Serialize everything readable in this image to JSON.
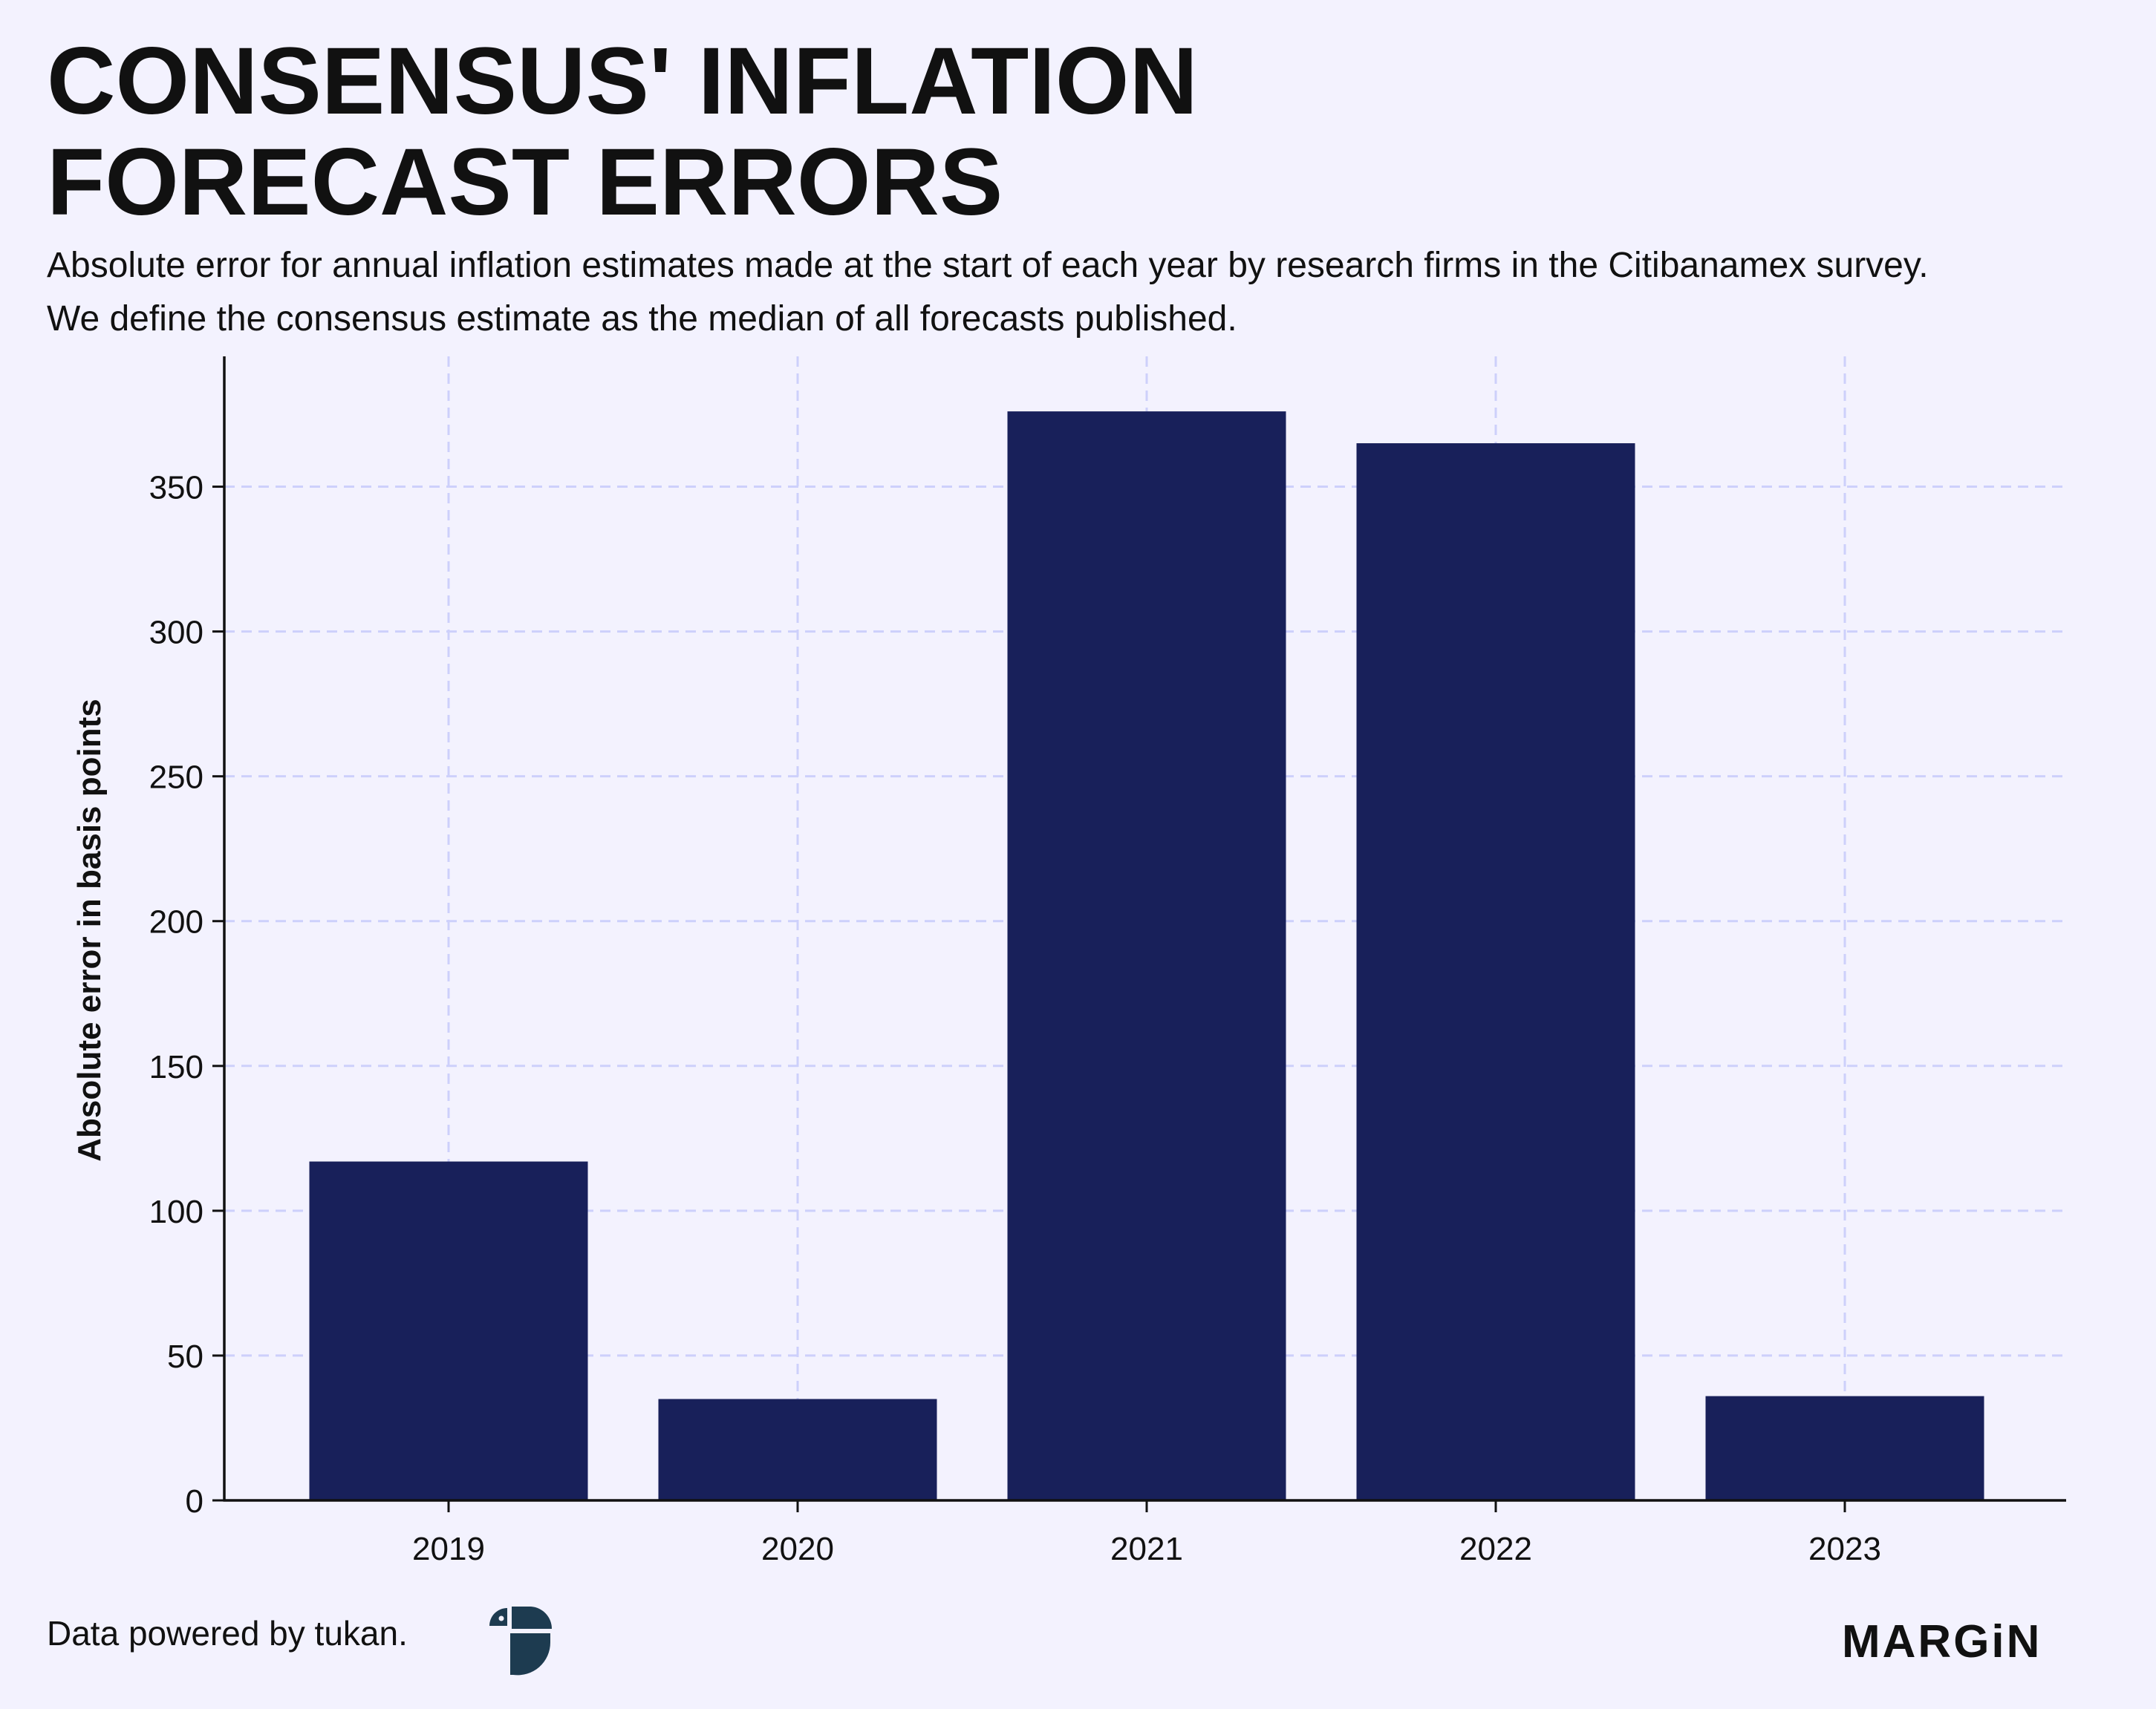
{
  "header": {
    "title_line1": "CONSENSUS' INFLATION",
    "title_line2": "FORECAST ERRORS",
    "subtitle_line1": "Absolute error for annual inflation estimates made at the start of each year by research firms in the Citibanamex survey.",
    "subtitle_line2": "We define the consensus estimate as the median of all forecasts published."
  },
  "chart_data": {
    "type": "bar",
    "title": "CONSENSUS' INFLATION FORECAST ERRORS",
    "subtitle": "Absolute error for annual inflation estimates made at the start of each year by research firms in the Citibanamex survey. We define the consensus estimate as the median of all forecasts published.",
    "categories": [
      "2019",
      "2020",
      "2021",
      "2022",
      "2023"
    ],
    "values": [
      117,
      35,
      376,
      365,
      36
    ],
    "xlabel": "",
    "ylabel": "Absolute error in basis points",
    "ylim": [
      0,
      395
    ],
    "yticks": [
      0,
      50,
      100,
      150,
      200,
      250,
      300,
      350
    ],
    "grid": true,
    "legend": "none",
    "colors": {
      "bar": "#18205a",
      "grid": "#cdd0fb",
      "axis": "#111111",
      "background": "#f3f2fe"
    }
  },
  "footer": {
    "credit": "Data powered by tukan.",
    "logo_icon": "tukan-logo-icon",
    "brand": "MARGiN"
  }
}
